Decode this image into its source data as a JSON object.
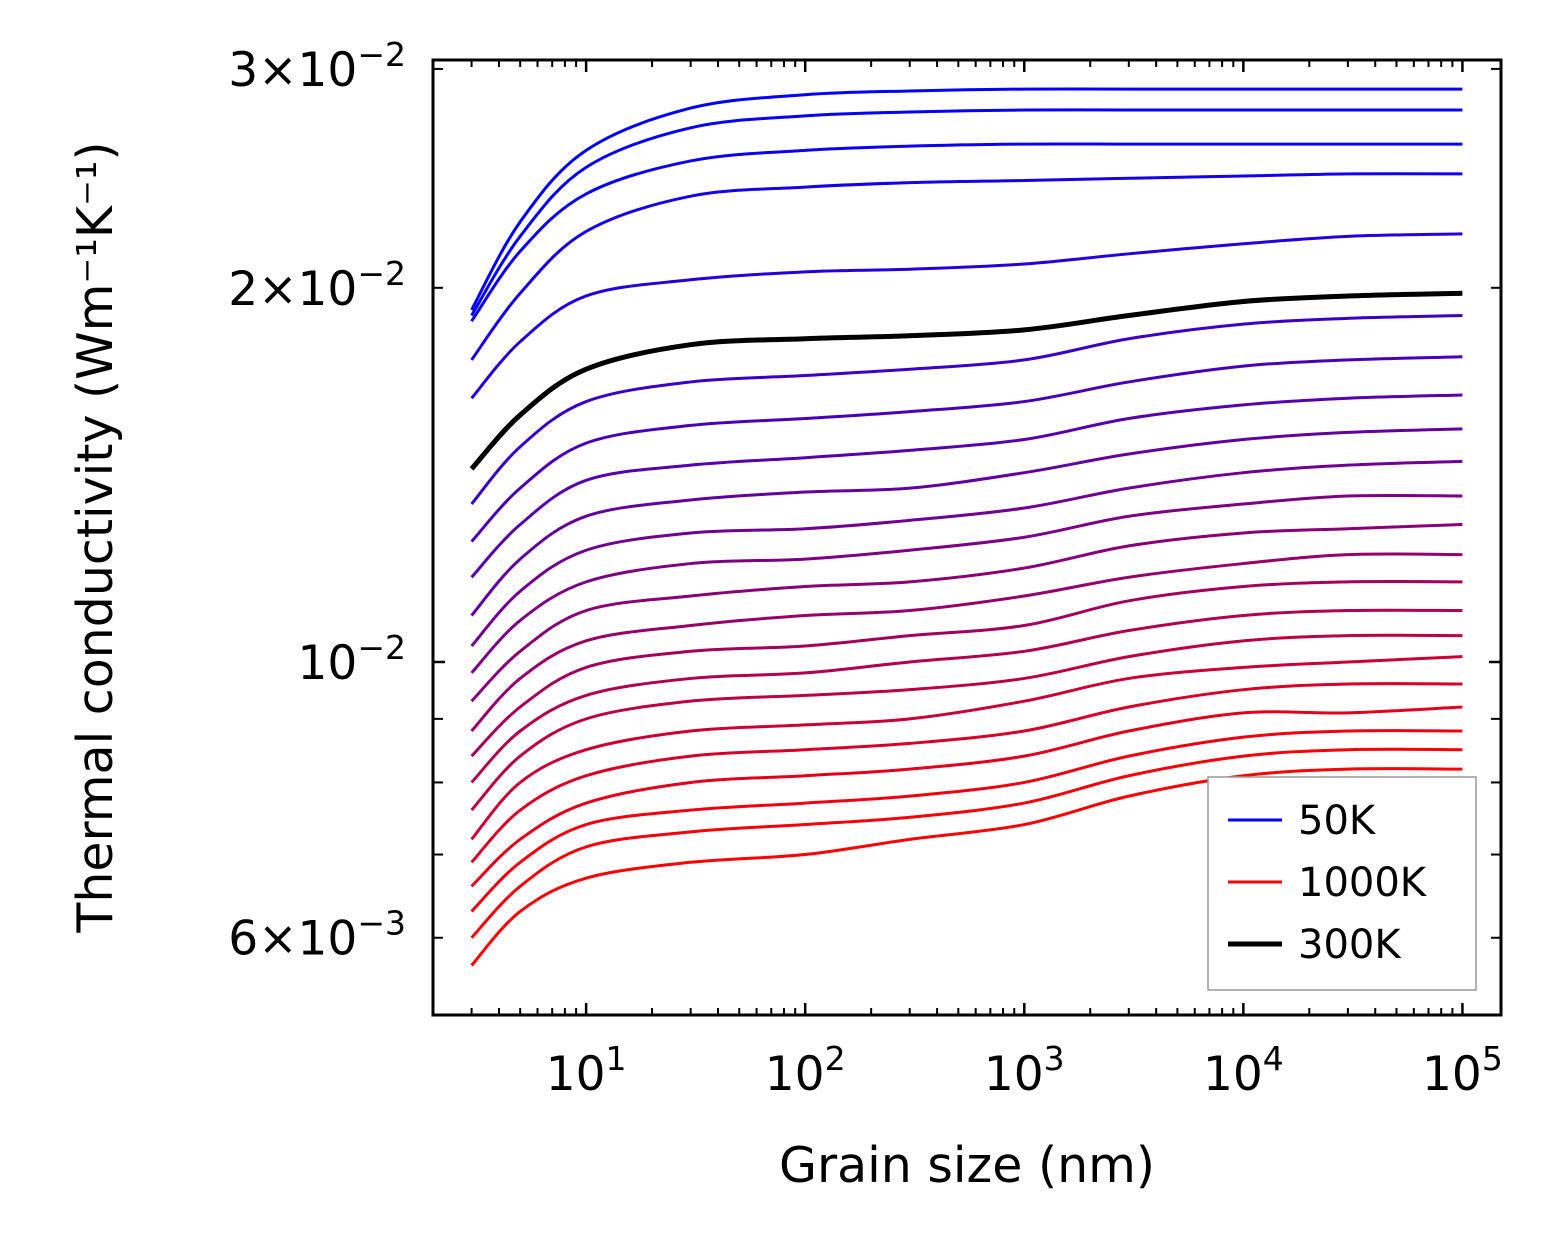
{
  "chart_data": {
    "type": "line",
    "title": "",
    "xlabel": "Grain size (nm)",
    "ylabel": "Thermal conductivity (Wm⁻¹K⁻¹)",
    "xscale": "log",
    "yscale": "log",
    "xlim": [
      2.0,
      150000
    ],
    "ylim": [
      0.0052,
      0.0305
    ],
    "x_ticks": [
      {
        "value": 10,
        "base": "10",
        "exp": "1"
      },
      {
        "value": 100,
        "base": "10",
        "exp": "2"
      },
      {
        "value": 1000,
        "base": "10",
        "exp": "3"
      },
      {
        "value": 10000,
        "base": "10",
        "exp": "4"
      },
      {
        "value": 100000,
        "base": "10",
        "exp": "5"
      }
    ],
    "y_ticks": [
      {
        "value": 0.006,
        "base": "6×10",
        "exp": "−3"
      },
      {
        "value": 0.01,
        "base": "10",
        "exp": "−2"
      },
      {
        "value": 0.02,
        "base": "2×10",
        "exp": "−2"
      },
      {
        "value": 0.03,
        "base": "3×10",
        "exp": "−2"
      }
    ],
    "x": [
      3,
      5,
      10,
      30,
      100,
      300,
      1000,
      3000,
      10000,
      30000,
      100000
    ],
    "series": [
      {
        "name": "50K",
        "color": "#0000ff",
        "width": 3,
        "values": [
          0.0192,
          0.0226,
          0.0258,
          0.0279,
          0.0286,
          0.0288,
          0.0289,
          0.0289,
          0.0289,
          0.0289,
          0.0289
        ]
      },
      {
        "name": "",
        "color": "#0600f8",
        "width": 3,
        "values": [
          0.019,
          0.022,
          0.025,
          0.0269,
          0.0275,
          0.0277,
          0.0278,
          0.0278,
          0.0278,
          0.0278,
          0.0278
        ]
      },
      {
        "name": "",
        "color": "#0c00f2",
        "width": 3,
        "values": [
          0.0188,
          0.0214,
          0.0238,
          0.0253,
          0.0258,
          0.026,
          0.0261,
          0.0261,
          0.0261,
          0.0261,
          0.0261
        ]
      },
      {
        "name": "",
        "color": "#1600e9",
        "width": 3,
        "values": [
          0.0175,
          0.0198,
          0.0222,
          0.0237,
          0.0241,
          0.0243,
          0.0244,
          0.0245,
          0.0246,
          0.0247,
          0.0247
        ]
      },
      {
        "name": "",
        "color": "#2200dd",
        "width": 3,
        "values": [
          0.0163,
          0.0181,
          0.0197,
          0.0203,
          0.0206,
          0.0207,
          0.0209,
          0.0213,
          0.0217,
          0.022,
          0.0221
        ]
      },
      {
        "name": "300K",
        "color": "#000000",
        "width": 5,
        "values": [
          0.0143,
          0.0158,
          0.0172,
          0.018,
          0.0182,
          0.0183,
          0.0185,
          0.019,
          0.0195,
          0.0197,
          0.0198
        ]
      },
      {
        "name": "",
        "color": "#3a00c5",
        "width": 3,
        "values": [
          0.0134,
          0.0149,
          0.0162,
          0.0168,
          0.017,
          0.0172,
          0.0175,
          0.0182,
          0.0187,
          0.0189,
          0.019
        ]
      },
      {
        "name": "",
        "color": "#4800b7",
        "width": 3,
        "values": [
          0.0125,
          0.0138,
          0.015,
          0.0155,
          0.0157,
          0.0159,
          0.0162,
          0.0168,
          0.0173,
          0.0175,
          0.0176
        ]
      },
      {
        "name": "",
        "color": "#5500aa",
        "width": 3,
        "values": [
          0.0117,
          0.0129,
          0.014,
          0.0144,
          0.0146,
          0.0148,
          0.0151,
          0.0157,
          0.0161,
          0.0163,
          0.0164
        ]
      },
      {
        "name": "",
        "color": "#62009d",
        "width": 3,
        "values": [
          0.0109,
          0.0121,
          0.0131,
          0.0135,
          0.0137,
          0.0138,
          0.0142,
          0.0147,
          0.0151,
          0.0153,
          0.0154
        ]
      },
      {
        "name": "",
        "color": "#6f0090",
        "width": 3,
        "values": [
          0.0103,
          0.0114,
          0.0123,
          0.0127,
          0.0128,
          0.013,
          0.0133,
          0.0138,
          0.0142,
          0.0144,
          0.0145
        ]
      },
      {
        "name": "",
        "color": "#7c0083",
        "width": 3,
        "values": [
          0.0098,
          0.0108,
          0.0116,
          0.012,
          0.0121,
          0.0123,
          0.0126,
          0.0131,
          0.0134,
          0.0136,
          0.0136
        ]
      },
      {
        "name": "",
        "color": "#890076",
        "width": 3,
        "values": [
          0.0093,
          0.0102,
          0.011,
          0.0113,
          0.0115,
          0.0116,
          0.0119,
          0.0124,
          0.0127,
          0.0128,
          0.0129
        ]
      },
      {
        "name": "",
        "color": "#960069",
        "width": 3,
        "values": [
          0.0088,
          0.0097,
          0.0104,
          0.0107,
          0.0109,
          0.011,
          0.0113,
          0.0117,
          0.012,
          0.0122,
          0.0122
        ]
      },
      {
        "name": "",
        "color": "#a3005c",
        "width": 3,
        "values": [
          0.0084,
          0.0092,
          0.0099,
          0.0102,
          0.0103,
          0.0105,
          0.0107,
          0.0112,
          0.0115,
          0.0116,
          0.0116
        ]
      },
      {
        "name": "",
        "color": "#b0004f",
        "width": 3,
        "values": [
          0.008,
          0.0088,
          0.0094,
          0.0097,
          0.0098,
          0.01,
          0.0102,
          0.0106,
          0.0109,
          0.011,
          0.011
        ]
      },
      {
        "name": "",
        "color": "#bd0042",
        "width": 3,
        "values": [
          0.0076,
          0.0084,
          0.009,
          0.0093,
          0.0094,
          0.0095,
          0.0097,
          0.0101,
          0.0104,
          0.0105,
          0.0105
        ]
      },
      {
        "name": "",
        "color": "#ca0035",
        "width": 3,
        "values": [
          0.0072,
          0.008,
          0.0085,
          0.0088,
          0.0089,
          0.009,
          0.0093,
          0.0097,
          0.0099,
          0.01,
          0.0101
        ]
      },
      {
        "name": "",
        "color": "#d70028",
        "width": 3,
        "values": [
          0.0069,
          0.0076,
          0.0081,
          0.0084,
          0.0085,
          0.0086,
          0.0088,
          0.0092,
          0.0095,
          0.0096,
          0.0096
        ]
      },
      {
        "name": "",
        "color": "#e3001c",
        "width": 3,
        "values": [
          0.0066,
          0.0072,
          0.0077,
          0.008,
          0.0081,
          0.0082,
          0.0084,
          0.0088,
          0.0091,
          0.0091,
          0.0092
        ]
      },
      {
        "name": "",
        "color": "#f0000f",
        "width": 3,
        "values": [
          0.0063,
          0.0069,
          0.0074,
          0.0076,
          0.0077,
          0.0078,
          0.008,
          0.0084,
          0.0087,
          0.0088,
          0.0088
        ]
      },
      {
        "name": "",
        "color": "#f80007",
        "width": 3,
        "values": [
          0.006,
          0.0066,
          0.0071,
          0.0073,
          0.0074,
          0.0075,
          0.0077,
          0.0081,
          0.0084,
          0.0085,
          0.0085
        ]
      },
      {
        "name": "1000K",
        "color": "#ff0000",
        "width": 3,
        "values": [
          0.0057,
          0.0063,
          0.0067,
          0.0069,
          0.007,
          0.0072,
          0.0074,
          0.0078,
          0.0081,
          0.0082,
          0.0082
        ]
      }
    ],
    "legend": {
      "position": "lower-right",
      "entries": [
        {
          "label": "50K",
          "color": "#0000ff",
          "width": 3
        },
        {
          "label": "1000K",
          "color": "#ff0000",
          "width": 3
        },
        {
          "label": "300K",
          "color": "#000000",
          "width": 5
        }
      ]
    }
  }
}
